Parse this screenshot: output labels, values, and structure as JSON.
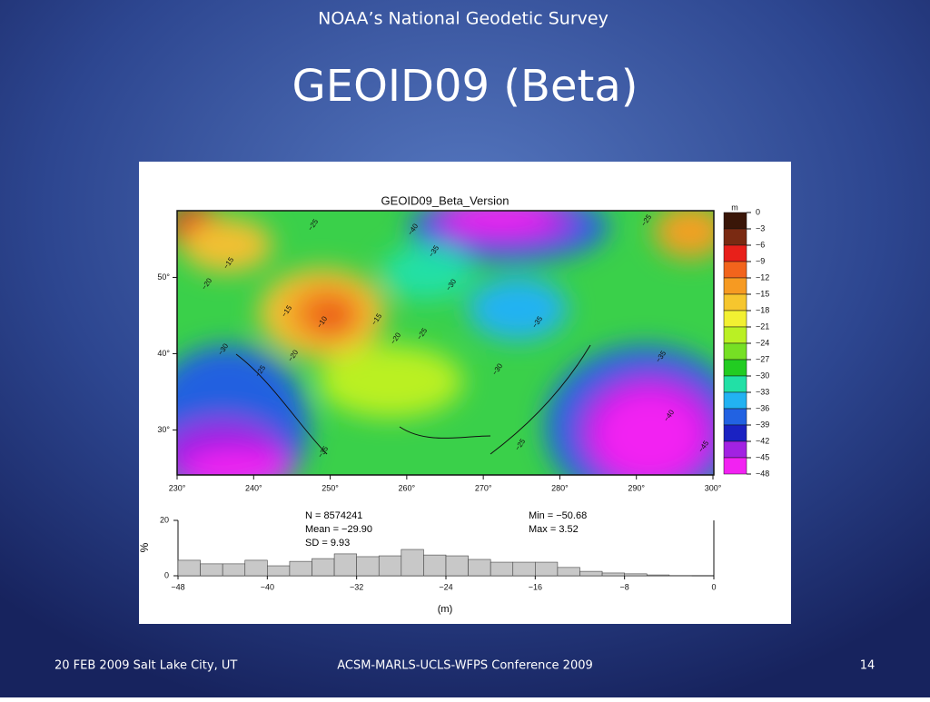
{
  "header": {
    "organization": "NOAA’s National Geodetic Survey",
    "title": "GEOID09 (Beta)"
  },
  "figure": {
    "map": {
      "title": "GEOID09_Beta_Version",
      "lon_ticks": [
        {
          "value": 230,
          "label": "230°"
        },
        {
          "value": 240,
          "label": "240°"
        },
        {
          "value": 250,
          "label": "250°"
        },
        {
          "value": 260,
          "label": "260°"
        },
        {
          "value": 270,
          "label": "270°"
        },
        {
          "value": 280,
          "label": "280°"
        },
        {
          "value": 290,
          "label": "290°"
        },
        {
          "value": 300,
          "label": "300°"
        }
      ],
      "lat_ticks": [
        {
          "value": 50,
          "label": "50°"
        },
        {
          "value": 40,
          "label": "40°"
        },
        {
          "value": 30,
          "label": "30°"
        }
      ],
      "contour_labels": [
        "−25",
        "−40",
        "−35",
        "−15",
        "−20",
        "−30",
        "−15",
        "−10",
        "−15",
        "−25",
        "−20",
        "−30",
        "−20",
        "−25",
        "−30",
        "−35",
        "−35",
        "−25",
        "−40",
        "−45",
        "−25",
        "−35"
      ]
    },
    "colorbar": {
      "unit": "m",
      "ticks": [
        {
          "value": 0,
          "label": "0"
        },
        {
          "value": -3,
          "label": "−3"
        },
        {
          "value": -6,
          "label": "−6"
        },
        {
          "value": -9,
          "label": "−9"
        },
        {
          "value": -12,
          "label": "−12"
        },
        {
          "value": -15,
          "label": "−15"
        },
        {
          "value": -18,
          "label": "−18"
        },
        {
          "value": -21,
          "label": "−21"
        },
        {
          "value": -24,
          "label": "−24"
        },
        {
          "value": -27,
          "label": "−27"
        },
        {
          "value": -30,
          "label": "−30"
        },
        {
          "value": -33,
          "label": "−33"
        },
        {
          "value": -36,
          "label": "−36"
        },
        {
          "value": -39,
          "label": "−39"
        },
        {
          "value": -42,
          "label": "−42"
        },
        {
          "value": -45,
          "label": "−45"
        },
        {
          "value": -48,
          "label": "−48"
        }
      ],
      "colors": [
        "#3a1608",
        "#7a2a12",
        "#e8201a",
        "#f2641c",
        "#f69a22",
        "#f6c62e",
        "#f2f032",
        "#baf024",
        "#76e024",
        "#22cc22",
        "#22e0a6",
        "#22b2f2",
        "#2262e2",
        "#1a22c2",
        "#a222e2",
        "#f222f2"
      ]
    },
    "histogram": {
      "stats": [
        "N =  8574241",
        "Mean = −29.90",
        "SD = 9.93"
      ],
      "extremes": [
        "Min = −50.68",
        "Max = 3.52"
      ],
      "ylabel": "%",
      "xlabel": "(m)",
      "bins": [
        -48,
        -46,
        -44,
        -42,
        -40,
        -38,
        -36,
        -34,
        -32,
        -30,
        -28,
        -26,
        -24,
        -22,
        -20,
        -18,
        -16,
        -14,
        -12,
        -10,
        -8,
        -6,
        -4,
        -2,
        0
      ],
      "values": [
        5.6,
        4.3,
        4.3,
        5.6,
        3.6,
        5.2,
        6.2,
        7.9,
        6.9,
        7.2,
        9.5,
        7.5,
        7.2,
        5.9,
        4.9,
        4.9,
        4.9,
        3.0,
        1.6,
        1.0,
        0.7,
        0.3,
        0.1,
        0
      ],
      "color": "#c8c8c8",
      "xticks": [
        {
          "value": -48,
          "label": "−48"
        },
        {
          "value": -40,
          "label": "−40"
        },
        {
          "value": -32,
          "label": "−32"
        },
        {
          "value": -24,
          "label": "−24"
        },
        {
          "value": -16,
          "label": "−16"
        },
        {
          "value": -8,
          "label": "−8"
        },
        {
          "value": 0,
          "label": "0"
        }
      ],
      "ylim": [
        0,
        20
      ],
      "yticks": [
        0,
        20
      ]
    }
  },
  "footer": {
    "date_place": "20 FEB 2009   Salt Lake City, UT",
    "conference": "ACSM-MARLS-UCLS-WFPS Conference 2009",
    "page": "14"
  }
}
